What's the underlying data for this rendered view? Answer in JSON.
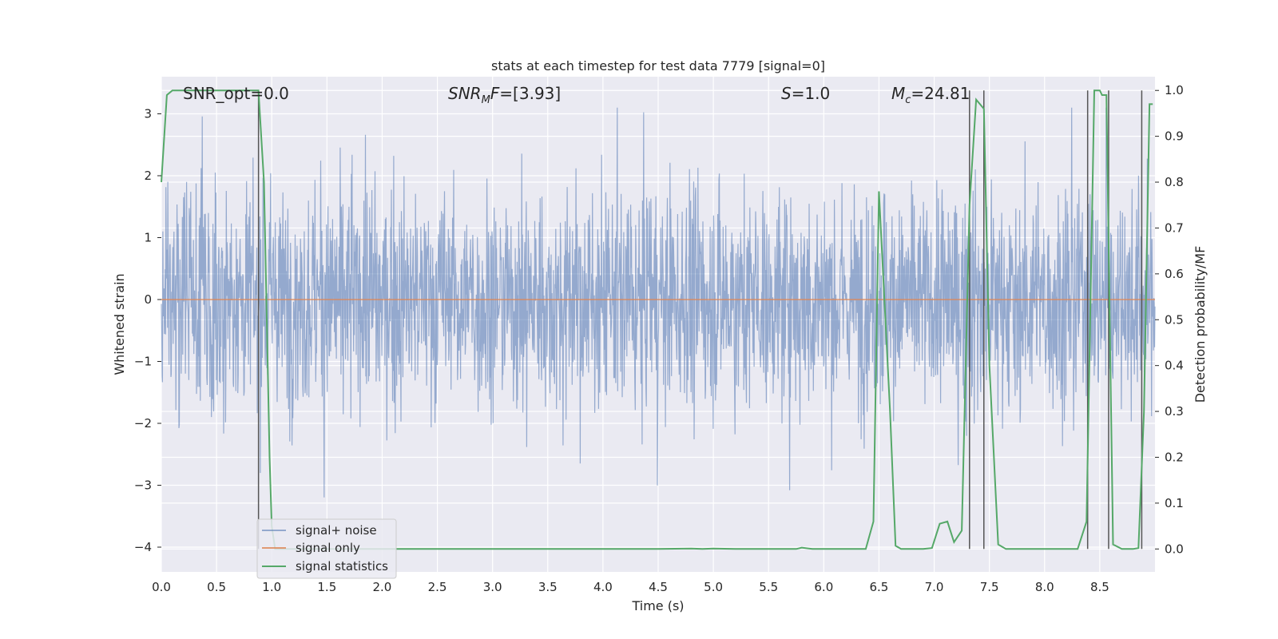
{
  "chart_data": {
    "type": "line",
    "title": "stats at each timestep for test data 7779 [signal=0]",
    "xlabel": "Time (s)",
    "ylabel": "Whitened strain",
    "y2label": "Detection probability/MF",
    "xlim": [
      0.0,
      9.0
    ],
    "ylim": [
      -4.4,
      3.6
    ],
    "y2lim": [
      -0.05,
      1.03
    ],
    "xticks": [
      "0.0",
      "0.5",
      "1.0",
      "1.5",
      "2.0",
      "2.5",
      "3.0",
      "3.5",
      "4.0",
      "4.5",
      "5.0",
      "5.5",
      "6.0",
      "6.5",
      "7.0",
      "7.5",
      "8.0",
      "8.5"
    ],
    "yticks": [
      "3",
      "2",
      "1",
      "0",
      "−1",
      "−2",
      "−3",
      "−4"
    ],
    "y2ticks": [
      "1.0",
      "0.9",
      "0.8",
      "0.7",
      "0.6",
      "0.5",
      "0.4",
      "0.3",
      "0.2",
      "0.1",
      "0.0"
    ],
    "grid": true,
    "legend_position": "lower-left",
    "annotations": {
      "snr_opt": "SNR_opt=0.0",
      "snr_mf": "SNRMF=[3.93]",
      "s_val": "S=1.0",
      "mc": "Mc=24.81"
    },
    "series": [
      {
        "name": "signal+ noise",
        "color": "#4c72b0",
        "style": "noisy strain trace, approx. range -2.5 to 2.5 with spikes"
      },
      {
        "name": "signal only",
        "color": "#dd8452",
        "x": [
          0.0,
          9.0
        ],
        "y": [
          0.0,
          0.0
        ]
      },
      {
        "name": "signal statistics",
        "color": "#55a868",
        "x": [
          0.0,
          0.05,
          0.1,
          0.15,
          0.2,
          0.3,
          0.4,
          0.5,
          0.6,
          0.7,
          0.8,
          0.88,
          0.93,
          0.98,
          1.0,
          1.03,
          1.1,
          1.5,
          2.0,
          2.5,
          3.0,
          3.5,
          4.0,
          4.5,
          4.8,
          4.9,
          5.0,
          5.2,
          5.5,
          5.75,
          5.8,
          5.9,
          6.0,
          6.2,
          6.38,
          6.45,
          6.5,
          6.6,
          6.65,
          6.7,
          6.8,
          6.9,
          6.98,
          7.05,
          7.12,
          7.18,
          7.25,
          7.32,
          7.38,
          7.45,
          7.5,
          7.58,
          7.65,
          7.8,
          8.0,
          8.2,
          8.3,
          8.38,
          8.45,
          8.5,
          8.52,
          8.56,
          8.62,
          8.7,
          8.8,
          8.85,
          8.9,
          8.95,
          8.98
        ],
        "y": [
          0.8,
          0.99,
          1.0,
          1.0,
          1.0,
          1.0,
          1.0,
          1.0,
          1.0,
          1.0,
          1.0,
          1.0,
          0.8,
          0.2,
          0.05,
          0.0,
          0.0,
          0.0,
          0.0,
          0.0,
          0.0,
          0.0,
          0.0,
          0.0,
          0.001,
          0.0,
          0.001,
          0.0,
          0.0,
          0.0,
          0.003,
          0.0,
          0.0,
          0.0,
          0.0,
          0.06,
          0.78,
          0.3,
          0.007,
          0.0,
          0.0,
          0.0,
          0.002,
          0.055,
          0.06,
          0.015,
          0.04,
          0.75,
          0.98,
          0.96,
          0.4,
          0.01,
          0.0,
          0.0,
          0.0,
          0.0,
          0.0,
          0.06,
          1.0,
          1.0,
          0.99,
          0.99,
          0.01,
          0.0,
          0.0,
          0.002,
          0.3,
          0.97,
          0.97
        ]
      }
    ],
    "vlines": [
      0.88,
      7.32,
      7.45,
      8.39,
      8.58,
      8.88
    ]
  }
}
